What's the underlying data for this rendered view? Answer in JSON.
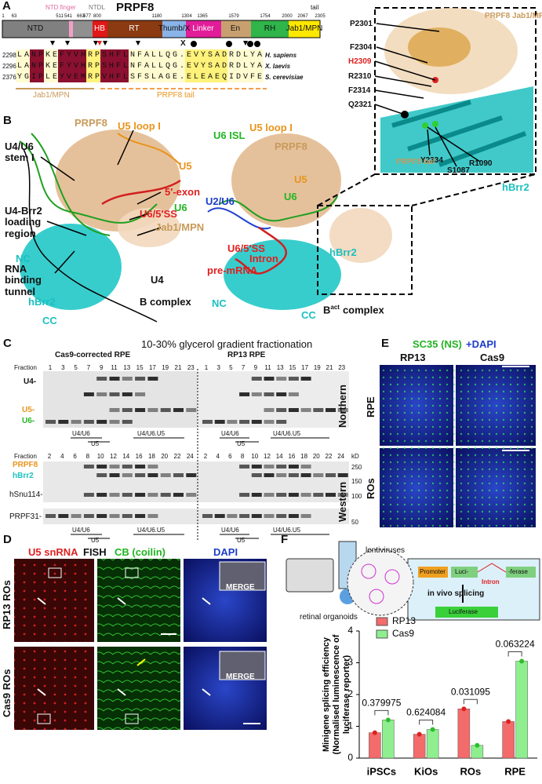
{
  "A": {
    "label": "A",
    "title": "PRPF8",
    "ntd_finger": "NTD finger",
    "ntdl": "NTDL",
    "tail": "tail",
    "positions": [
      "1",
      "63",
      "511",
      "541",
      "663",
      "677",
      "800",
      "1180",
      "1304",
      "1365",
      "1579",
      "1754",
      "2000",
      "2067",
      "2305"
    ],
    "domains": [
      "NTD",
      "HB",
      "RT",
      "Thumb/X",
      "Linker",
      "En",
      "RH",
      "Jab1/MPN"
    ],
    "alignment": [
      {
        "start": "2298",
        "seq": "LANPKEFYVHRPSHFLNFALLQG.EVYSADRDLYA",
        "species": "H. sapiens"
      },
      {
        "start": "2296",
        "seq": "LANPKEFYVHRPSHFLNFALLQG.EVYSADRDLYA",
        "species": "X. laevis"
      },
      {
        "start": "2376",
        "seq": "YGIPLEYVEMRPVHFLSFSLAGE.ELEAEQIDVFE",
        "species": "S. cerevisiae"
      }
    ],
    "marker_x": "X",
    "jab1": "Jab1/MPN",
    "tail_label": "PRPF8 tail",
    "zoom": {
      "residues": [
        "P2301",
        "F2304",
        "H2309",
        "R2310",
        "F2314",
        "Q2321",
        "Y2334",
        "S1087",
        "R1090"
      ],
      "jab1": "PRPF8 Jab1/MPN",
      "tail": "PRPF8 tail",
      "hbrr2": "hBrr2"
    }
  },
  "B": {
    "label": "B",
    "left": {
      "labels": [
        "PRPF8",
        "U5 loop I",
        "U4/U6 stem I",
        "U5",
        "5′-exon",
        "U6",
        "U6/5′SS",
        "U4-Brr2 loading region",
        "Jab1/MPN",
        "NC",
        "RNA binding tunnel",
        "U4",
        "hBrr2",
        "CC"
      ],
      "title": "B complex"
    },
    "right": {
      "labels": [
        "U5 loop I",
        "U6 ISL",
        "PRPF8",
        "U5",
        "U6",
        "U2/U6",
        "U6/5′SS",
        "Intron",
        "pre-mRNA",
        "hBrr2",
        "NC",
        "CC"
      ],
      "title": "B",
      "title_sup": "act",
      "title_tail": "complex"
    }
  },
  "C": {
    "label": "C",
    "title": "10-30% glycerol gradient fractionation",
    "left_title": "Cas9-corrected RPE",
    "right_title": "RP13 RPE",
    "fraction": "Fraction",
    "northern_fractions": [
      1,
      3,
      5,
      7,
      9,
      11,
      13,
      15,
      17,
      19,
      21,
      23
    ],
    "western_fractions": [
      2,
      4,
      6,
      8,
      10,
      12,
      14,
      16,
      18,
      20,
      22,
      24
    ],
    "northern": "Northern",
    "western": "Western",
    "northern_bands": [
      "U4-",
      "U5-",
      "U6-"
    ],
    "western_bands": [
      "PRPF8",
      "hBrr2",
      "hSnu114-",
      "PRPF31-"
    ],
    "kd": "kD",
    "kd_marks": [
      "250",
      "150",
      "100",
      "50"
    ],
    "groups": [
      "U4/U6",
      "U5",
      "U4/U6.U5"
    ]
  },
  "D": {
    "label": "D",
    "headers": [
      "U5 snRNA",
      "FISH",
      "CB (coilin)",
      "DAPI"
    ],
    "merge": "MERGE",
    "rows": [
      "RP13 ROs",
      "Cas9 ROs"
    ]
  },
  "E": {
    "label": "E",
    "title": "SC35 (NS)",
    "title_dapi": "+DAPI",
    "columns": [
      "RP13",
      "Cas9"
    ],
    "rows": [
      "RPE",
      "ROs"
    ]
  },
  "F": {
    "label": "F",
    "schematic": {
      "lentiviruses": "lentiviruses",
      "promoter": "Promoter",
      "luci": "Luci-",
      "ferase": "-ferase",
      "intron": "Intron",
      "splicing": "in vivo splicing",
      "luciferase": "Luciferase",
      "organoids": "retinal organoids"
    },
    "chart_data": {
      "type": "bar",
      "ylabel": [
        "Minigene splicing efficiency",
        "(Normalised luminescence of",
        "luciferase reporter)"
      ],
      "categories": [
        "iPSCs",
        "KiOs",
        "ROs",
        "RPE"
      ],
      "series": [
        {
          "name": "RP13",
          "color": "#f36b6b",
          "values": [
            0.8,
            0.75,
            1.55,
            1.15
          ]
        },
        {
          "name": "Cas9",
          "color": "#8fef8f",
          "values": [
            1.2,
            0.9,
            0.4,
            3.05
          ]
        }
      ],
      "ylim": [
        0,
        4
      ],
      "yticks": [
        0,
        1,
        2,
        3,
        4
      ],
      "annotations": [
        "0.379975",
        "0.624084",
        "0.031095",
        "0.063224"
      ]
    }
  }
}
